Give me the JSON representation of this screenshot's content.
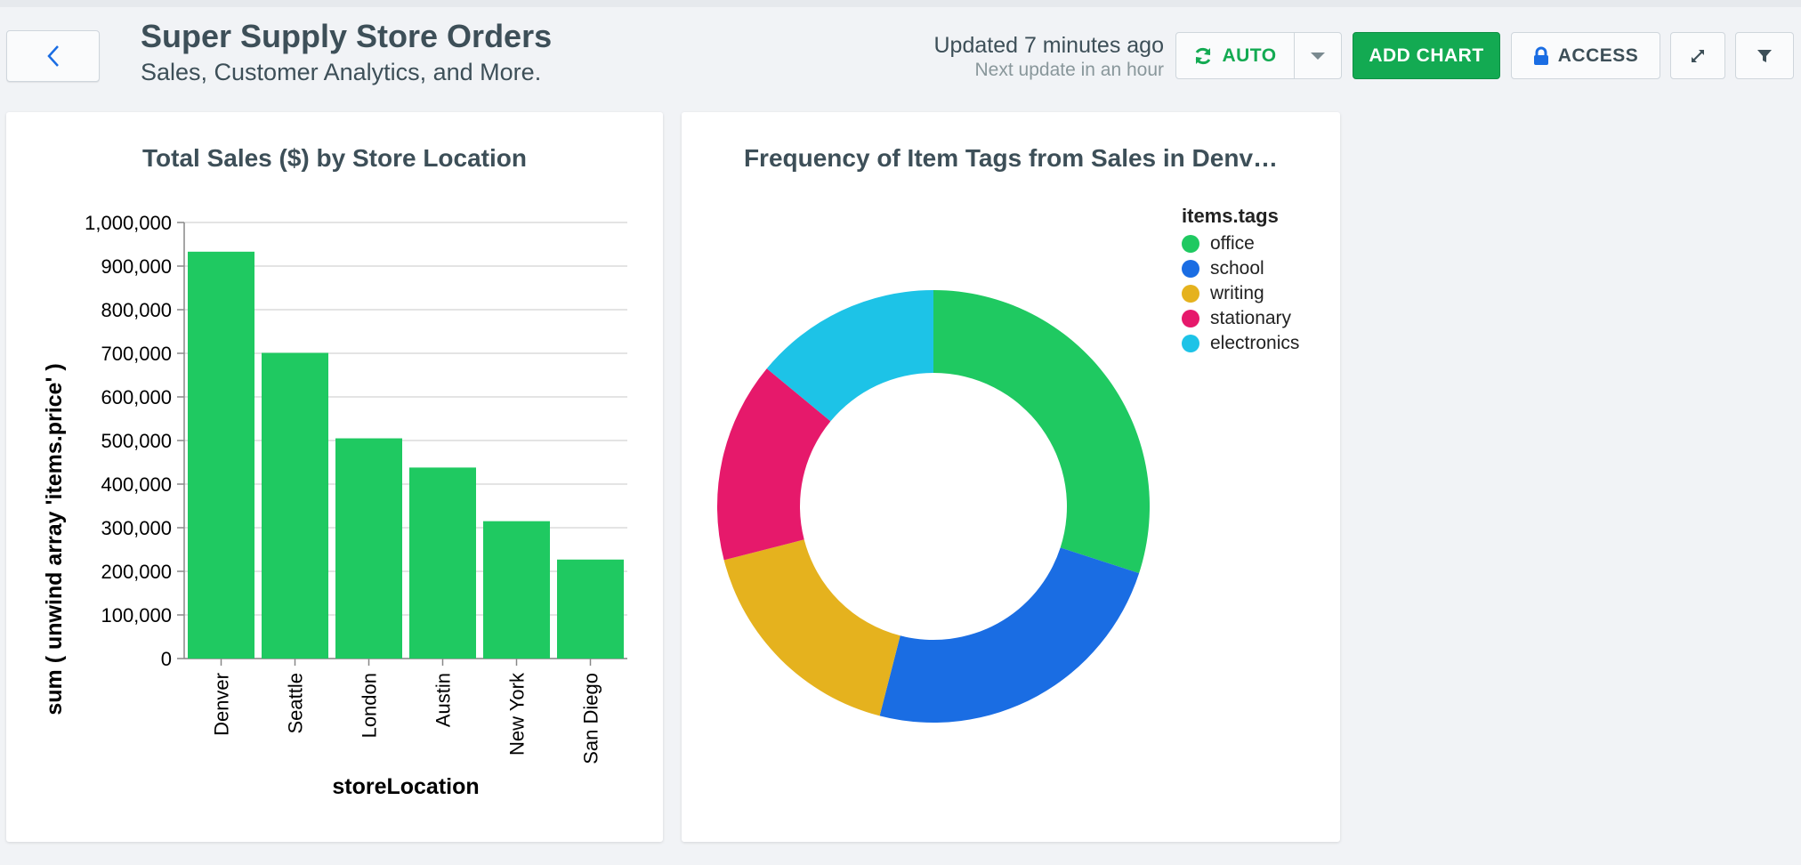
{
  "header": {
    "title": "Super Supply Store Orders",
    "subtitle": "Sales, Customer Analytics, and More.",
    "updated": "Updated 7 minutes ago",
    "next_update": "Next update in an hour"
  },
  "toolbar": {
    "auto_label": "AUTO",
    "add_chart_label": "ADD CHART",
    "access_label": "ACCESS"
  },
  "colors": {
    "accent": "#13aa52",
    "bar": "#1fc961"
  },
  "chart_data": [
    {
      "type": "bar",
      "title": "Total Sales ($) by Store Location",
      "xlabel": "storeLocation",
      "ylabel": "sum ( unwind array 'items.price' )",
      "categories": [
        "Denver",
        "Seattle",
        "London",
        "Austin",
        "New York",
        "San Diego"
      ],
      "values": [
        933000,
        701000,
        505000,
        438000,
        315000,
        227000
      ],
      "ylim": [
        0,
        1000000
      ],
      "yticks": [
        0,
        100000,
        200000,
        300000,
        400000,
        500000,
        600000,
        700000,
        800000,
        900000,
        1000000
      ],
      "ytick_labels": [
        "0",
        "100,000",
        "200,000",
        "300,000",
        "400,000",
        "500,000",
        "600,000",
        "700,000",
        "800,000",
        "900,000",
        "1,000,000"
      ],
      "grid": true
    },
    {
      "type": "pie",
      "title": "Frequency of Item Tags from Sales in Denv…",
      "legend_title": "items.tags",
      "legend_position": "top-right",
      "donut": true,
      "labels": [
        "office",
        "school",
        "writing",
        "stationary",
        "electronics"
      ],
      "values": [
        30,
        24,
        17,
        15,
        14
      ],
      "colors": [
        "#1fc961",
        "#1a6de3",
        "#e5b21e",
        "#e6196b",
        "#1dc3e7"
      ]
    }
  ]
}
